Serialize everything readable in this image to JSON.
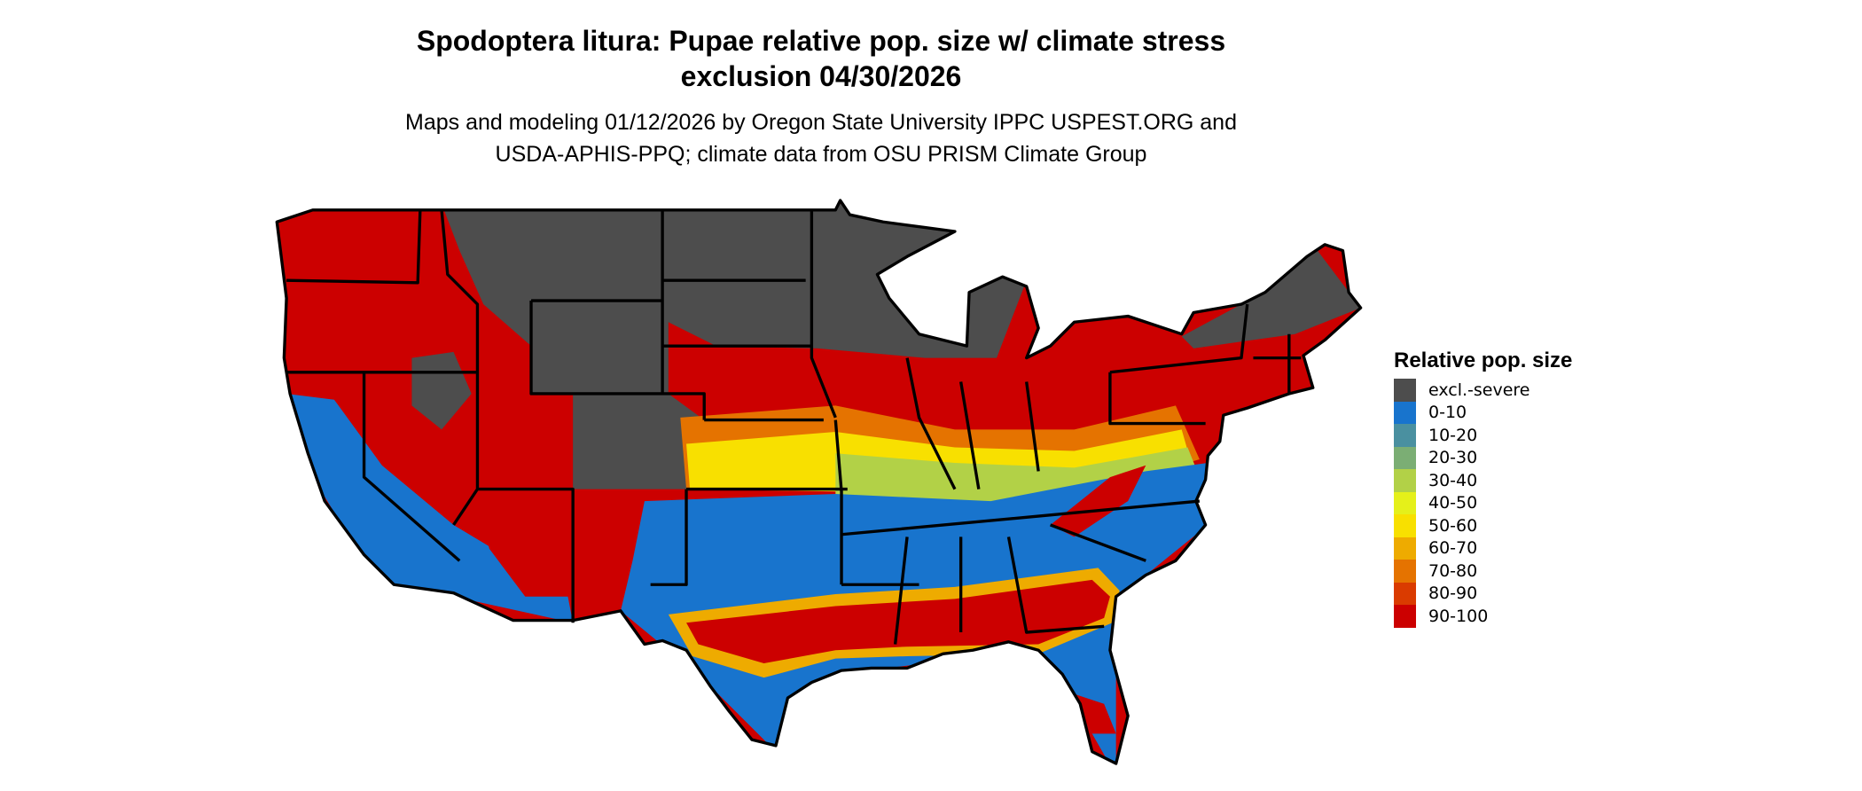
{
  "title": {
    "line1": "Spodoptera litura: Pupae relative pop. size w/ climate stress",
    "line2": "exclusion 04/30/2026"
  },
  "subtitle": {
    "line1": "Maps and modeling 01/12/2026 by Oregon State University IPPC USPEST.ORG and",
    "line2": "USDA-APHIS-PPQ; climate data from OSU PRISM Climate Group"
  },
  "legend": {
    "title": "Relative pop. size",
    "items": [
      {
        "label": "excl.-severe",
        "color": "#4d4d4d"
      },
      {
        "label": "0-10",
        "color": "#1874cd"
      },
      {
        "label": "10-20",
        "color": "#4a90a0"
      },
      {
        "label": "20-30",
        "color": "#7bae74"
      },
      {
        "label": "30-40",
        "color": "#b2d147"
      },
      {
        "label": "40-50",
        "color": "#e5f01a"
      },
      {
        "label": "50-60",
        "color": "#f8e000"
      },
      {
        "label": "60-70",
        "color": "#eeab00"
      },
      {
        "label": "70-80",
        "color": "#e57300"
      },
      {
        "label": "80-90",
        "color": "#da3b00"
      },
      {
        "label": "90-100",
        "color": "#cc0000"
      }
    ]
  },
  "map": {
    "region": "Contiguous United States",
    "border_color": "#000000"
  }
}
